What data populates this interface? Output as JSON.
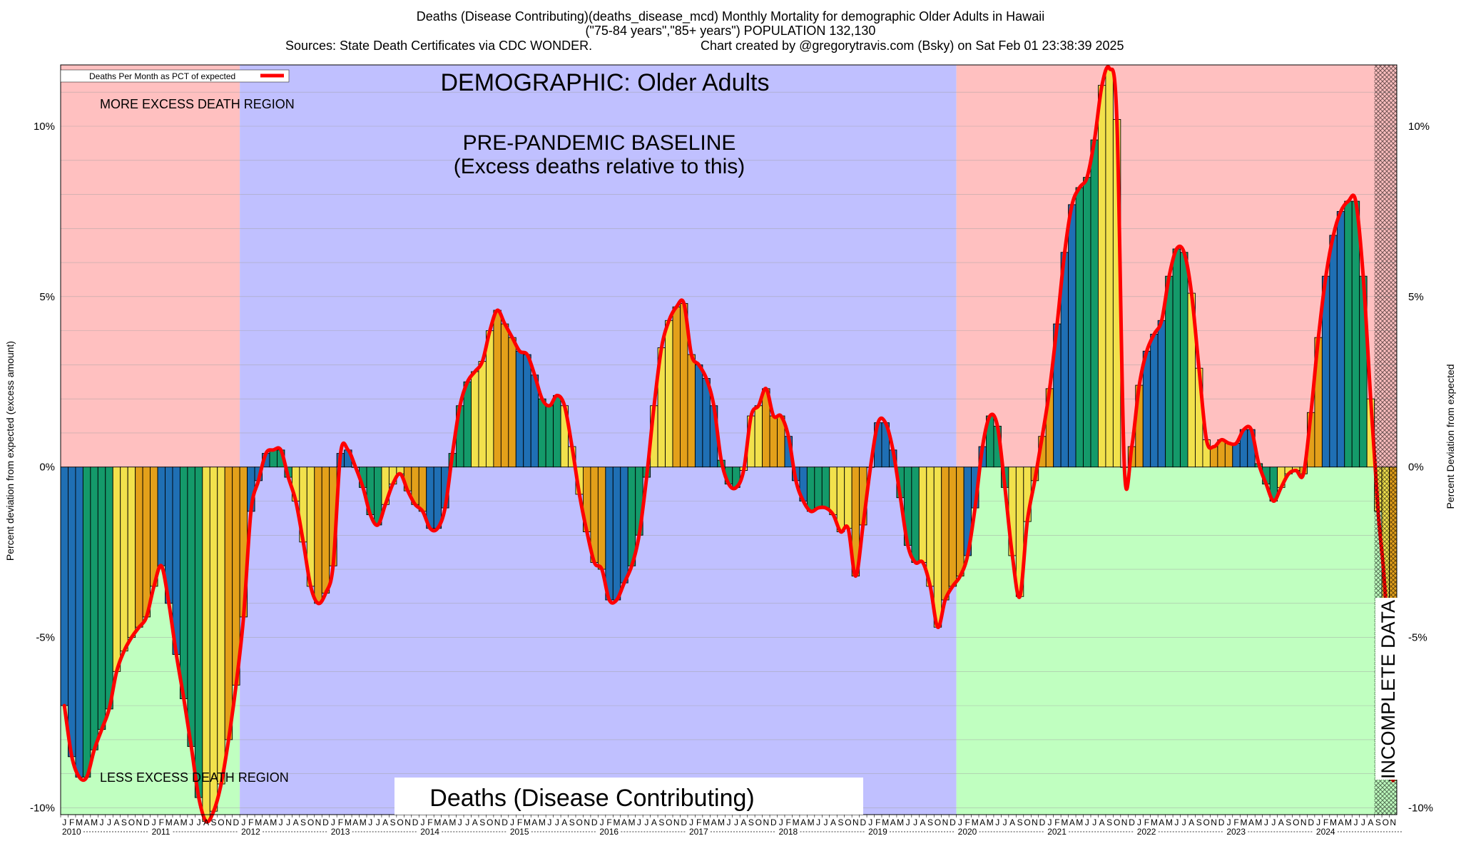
{
  "title": {
    "line1": "Deaths (Disease Contributing)(deaths_disease_mcd) Monthly Mortality for demographic Older Adults in Hawaii",
    "line2": "(\"75-84 years\",\"85+ years\") POPULATION 132,130",
    "line3_left": "Sources: State Death Certificates via CDC WONDER.",
    "line3_right": "Chart created by @gregorytravis.com (Bsky) on Sat Feb 01 23:38:39 2025"
  },
  "labels": {
    "demographic": "DEMOGRAPHIC: Older Adults",
    "baseline_line1": "PRE-PANDEMIC BASELINE",
    "baseline_line2": "(Excess deaths relative to this)",
    "more_excess": "MORE EXCESS DEATH REGION",
    "less_excess": "LESS EXCESS DEATH REGION",
    "incomplete": "INCOMPLETE DATA",
    "bottom_box": "Deaths (Disease Contributing)",
    "legend": "Deaths Per Month as PCT of expected",
    "ylabel_left": "Percent deviation from expected (excess amount)",
    "ylabel_right": "Percent Deviation from expected"
  },
  "colors": {
    "more_region": "#ffc0c0",
    "less_region": "#c0ffc0",
    "baseline_region": "#c0c0ff",
    "line": "#ff0000",
    "bar_blue": "#1f6fb4",
    "bar_green": "#149a6a",
    "bar_yellow": "#f2e14c",
    "bar_orange": "#e3a01a",
    "grid": "#a0a0a0"
  },
  "chart_data": {
    "type": "bar",
    "series": [
      {
        "name": "Deaths Per Month as PCT of expected",
        "values": [
          -7.0,
          -8.5,
          -9.1,
          -9.1,
          -8.3,
          -7.7,
          -7.1,
          -6.0,
          -5.4,
          -5.0,
          -4.7,
          -4.4,
          -3.5,
          -2.9,
          -4.0,
          -5.5,
          -6.8,
          -8.2,
          -9.7,
          -10.4,
          -10.1,
          -9.3,
          -8.0,
          -6.4,
          -4.4,
          -1.3,
          -0.4,
          0.4,
          0.5,
          0.5,
          -0.3,
          -1.0,
          -2.2,
          -3.5,
          -4.0,
          -3.7,
          -2.9,
          0.4,
          0.5,
          0.0,
          -0.6,
          -1.4,
          -1.7,
          -1.1,
          -0.5,
          -0.2,
          -0.7,
          -1.1,
          -1.3,
          -1.8,
          -1.8,
          -1.2,
          0.4,
          1.8,
          2.5,
          2.8,
          3.1,
          4.0,
          4.6,
          4.2,
          3.8,
          3.4,
          3.3,
          2.7,
          2.0,
          1.8,
          2.1,
          1.8,
          0.6,
          -0.8,
          -1.9,
          -2.8,
          -3.0,
          -3.9,
          -3.9,
          -3.4,
          -2.9,
          -2.0,
          -0.3,
          1.8,
          3.5,
          4.3,
          4.7,
          4.8,
          3.3,
          3.0,
          2.6,
          1.8,
          0.2,
          -0.5,
          -0.6,
          -0.1,
          1.5,
          1.8,
          2.3,
          1.5,
          1.5,
          0.9,
          -0.4,
          -1.0,
          -1.3,
          -1.2,
          -1.2,
          -1.4,
          -1.9,
          -1.8,
          -3.2,
          -1.7,
          0.0,
          1.3,
          1.3,
          0.5,
          -0.9,
          -2.3,
          -2.8,
          -2.8,
          -3.5,
          -4.7,
          -3.9,
          -3.5,
          -3.2,
          -2.6,
          -1.2,
          0.6,
          1.5,
          1.2,
          -0.6,
          -2.6,
          -3.8,
          -1.6,
          -0.4,
          0.9,
          2.3,
          4.2,
          6.3,
          7.7,
          8.2,
          8.5,
          9.6,
          11.2,
          11.7,
          10.2,
          0.0,
          0.6,
          2.4,
          3.4,
          3.9,
          4.3,
          5.6,
          6.4,
          6.3,
          5.1,
          2.9,
          0.8,
          0.6,
          0.8,
          0.7,
          0.7,
          1.1,
          1.1,
          0.1,
          -0.5,
          -1.0,
          -0.6,
          -0.2,
          -0.1,
          -0.2,
          1.6,
          3.8,
          5.6,
          6.8,
          7.5,
          7.8,
          7.8,
          5.6,
          2.0,
          -1.3,
          -3.9,
          -9.2
        ],
        "colors": [
          "blue",
          "blue",
          "blue",
          "green",
          "green",
          "green",
          "green",
          "yellow",
          "yellow",
          "yellow",
          "orange",
          "orange",
          "orange",
          "blue",
          "blue",
          "blue",
          "green",
          "green",
          "green",
          "yellow",
          "yellow",
          "yellow",
          "orange",
          "orange",
          "orange",
          "blue",
          "blue",
          "blue",
          "green",
          "green",
          "green",
          "yellow",
          "yellow",
          "yellow",
          "orange",
          "orange",
          "orange",
          "blue",
          "blue",
          "blue",
          "green",
          "green",
          "green",
          "yellow",
          "yellow",
          "yellow",
          "orange",
          "orange",
          "orange",
          "blue",
          "blue",
          "blue",
          "green",
          "green",
          "green",
          "yellow",
          "yellow",
          "yellow",
          "orange",
          "orange",
          "orange",
          "blue",
          "blue",
          "blue",
          "green",
          "green",
          "green",
          "yellow",
          "yellow",
          "yellow",
          "orange",
          "orange",
          "orange",
          "blue",
          "blue",
          "blue",
          "green",
          "green",
          "green",
          "yellow",
          "yellow",
          "yellow",
          "orange",
          "orange",
          "orange",
          "blue",
          "blue",
          "blue",
          "green",
          "green",
          "green",
          "yellow",
          "yellow",
          "yellow",
          "orange",
          "orange",
          "orange",
          "blue",
          "blue",
          "blue",
          "green",
          "green",
          "green",
          "yellow",
          "yellow",
          "yellow",
          "orange",
          "orange",
          "orange",
          "blue",
          "blue",
          "blue",
          "green",
          "green",
          "green",
          "yellow",
          "yellow",
          "yellow",
          "orange",
          "orange",
          "orange",
          "blue",
          "blue",
          "blue",
          "green",
          "green",
          "green",
          "yellow",
          "yellow",
          "yellow",
          "orange",
          "orange",
          "orange",
          "blue",
          "blue",
          "blue",
          "green",
          "green",
          "green",
          "yellow",
          "yellow",
          "yellow",
          "orange",
          "orange",
          "orange",
          "blue",
          "blue",
          "blue",
          "green",
          "green",
          "green",
          "yellow",
          "yellow",
          "yellow",
          "orange",
          "orange",
          "orange",
          "blue",
          "blue",
          "blue",
          "green",
          "green",
          "green",
          "yellow",
          "yellow",
          "yellow",
          "orange",
          "orange",
          "orange",
          "blue",
          "blue",
          "blue",
          "green",
          "green",
          "green",
          "yellow",
          "yellow",
          "yellow",
          "orange",
          "orange",
          "orange"
        ]
      }
    ],
    "ylim": [
      -10.2,
      11.8
    ],
    "yticks": [
      10,
      5,
      0,
      -5,
      -10
    ],
    "ytick_labels": [
      "10%",
      "5%",
      "0%",
      "-5%",
      "-10%"
    ],
    "month_letters": [
      "J",
      "F",
      "M",
      "A",
      "M",
      "J",
      "J",
      "A",
      "S",
      "O",
      "N",
      "D"
    ],
    "years": [
      "2010",
      "2011",
      "2012",
      "2013",
      "2014",
      "2015",
      "2016",
      "2017",
      "2018",
      "2019",
      "2020",
      "2021",
      "2022",
      "2023",
      "2024"
    ],
    "regions": [
      {
        "label": "more/less",
        "start_month": 0,
        "end_month": 24
      },
      {
        "label": "baseline",
        "start_month": 24,
        "end_month": 120
      },
      {
        "label": "more/less",
        "start_month": 120,
        "end_month": 176
      },
      {
        "label": "incomplete",
        "start_month": 176,
        "end_month": 180
      }
    ],
    "grid": true,
    "legend_position": "top-left"
  }
}
